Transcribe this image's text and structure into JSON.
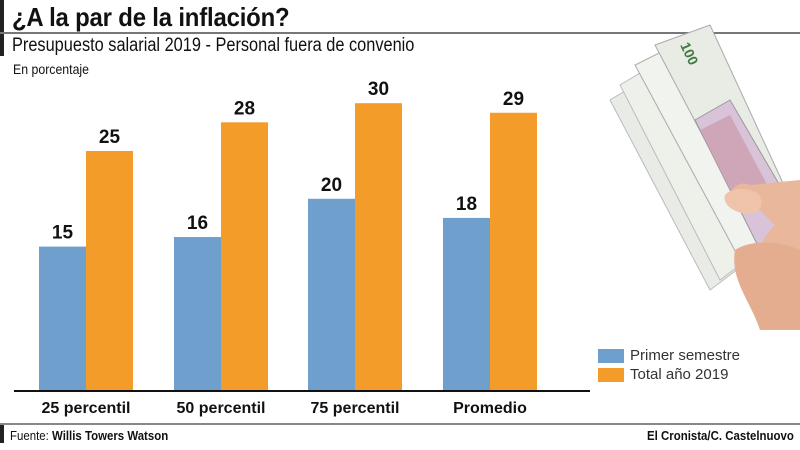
{
  "header": {
    "title": "¿A la par de la inflación?",
    "subtitle": "Presupuesto salarial 2019 - Personal fuera de convenio",
    "unit_note": "En porcentaje"
  },
  "footer": {
    "source_label": "Fuente:",
    "source_name": "Willis Towers Watson",
    "credit": "El Cronista/C. Castelnuovo"
  },
  "colors": {
    "primer_semestre": "#6f9fcc",
    "total_anio": "#f39c2a",
    "text": "#111111"
  },
  "illustration": {
    "icon": "hand-holding-banknotes-icon",
    "banknote_value": "100"
  },
  "chart_data": {
    "type": "bar",
    "title": "Presupuesto salarial 2019 - Personal fuera de convenio",
    "subtitle": "En porcentaje",
    "xlabel": "",
    "ylabel": "",
    "categories": [
      "25 percentil",
      "50 percentil",
      "75 percentil",
      "Promedio"
    ],
    "series": [
      {
        "name": "Primer semestre",
        "values": [
          15,
          16,
          20,
          18
        ]
      },
      {
        "name": "Total año 2019",
        "values": [
          25,
          28,
          30,
          29
        ]
      }
    ],
    "ylim": [
      0,
      32
    ],
    "grid": false,
    "data_labels": true,
    "legend_position": "bottom-right"
  }
}
